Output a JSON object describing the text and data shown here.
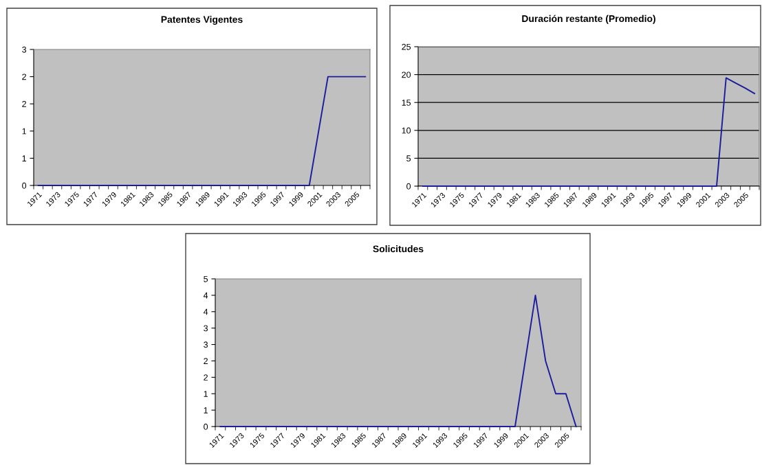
{
  "chart_data": [
    {
      "type": "line",
      "title": "Patentes Vigentes",
      "categories": [
        "1971",
        null,
        "1973",
        null,
        "1975",
        null,
        "1977",
        null,
        "1979",
        null,
        "1981",
        null,
        "1983",
        null,
        "1985",
        null,
        "1987",
        null,
        "1989",
        null,
        "1991",
        null,
        "1993",
        null,
        "1995",
        null,
        "1997",
        null,
        "1999",
        null,
        "2001",
        null,
        "2003",
        null,
        "2005",
        null
      ],
      "series": [
        {
          "color": "#1c1c9c",
          "values": [
            0,
            0,
            0,
            0,
            0,
            0,
            0,
            0,
            0,
            0,
            0,
            0,
            0,
            0,
            0,
            0,
            0,
            0,
            0,
            0,
            0,
            0,
            0,
            0,
            0,
            0,
            0,
            0,
            0,
            0,
            1,
            2,
            2,
            2,
            2,
            2
          ]
        }
      ],
      "ylim": [
        0,
        2.5
      ],
      "yticks": [
        {
          "value": 0,
          "label": "0"
        },
        {
          "value": 0.5,
          "label": "1"
        },
        {
          "value": 1,
          "label": "1"
        },
        {
          "value": 1.5,
          "label": "2"
        },
        {
          "value": 2,
          "label": "2"
        },
        {
          "value": 2.5,
          "label": "3"
        }
      ],
      "grid": false
    },
    {
      "type": "line",
      "title": "Duración restante (Promedio)",
      "categories": [
        "1971",
        null,
        "1973",
        null,
        "1975",
        null,
        "1977",
        null,
        "1979",
        null,
        "1981",
        null,
        "1983",
        null,
        "1985",
        null,
        "1987",
        null,
        "1989",
        null,
        "1991",
        null,
        "1993",
        null,
        "1995",
        null,
        "1997",
        null,
        "1999",
        null,
        "2001",
        null,
        "2003",
        null,
        "2005",
        null
      ],
      "series": [
        {
          "color": "#1c1c9c",
          "values": [
            0,
            0,
            0,
            0,
            0,
            0,
            0,
            0,
            0,
            0,
            0,
            0,
            0,
            0,
            0,
            0,
            0,
            0,
            0,
            0,
            0,
            0,
            0,
            0,
            0,
            0,
            0,
            0,
            0,
            0,
            0,
            0,
            19.4,
            18.5,
            17.6,
            16.6
          ]
        }
      ],
      "ylim": [
        0,
        25
      ],
      "yticks": [
        0,
        5,
        10,
        15,
        20,
        25
      ],
      "grid": "y"
    },
    {
      "type": "line",
      "title": "Solicitudes",
      "categories": [
        "1971",
        null,
        "1973",
        null,
        "1975",
        null,
        "1977",
        null,
        "1979",
        null,
        "1981",
        null,
        "1983",
        null,
        "1985",
        null,
        "1987",
        null,
        "1989",
        null,
        "1991",
        null,
        "1993",
        null,
        "1995",
        null,
        "1997",
        null,
        "1999",
        null,
        "2001",
        null,
        "2003",
        null,
        "2005",
        null
      ],
      "series": [
        {
          "color": "#1c1c9c",
          "values": [
            0,
            0,
            0,
            0,
            0,
            0,
            0,
            0,
            0,
            0,
            0,
            0,
            0,
            0,
            0,
            0,
            0,
            0,
            0,
            0,
            0,
            0,
            0,
            0,
            0,
            0,
            0,
            0,
            0,
            0,
            2,
            4,
            2,
            1,
            1,
            0
          ]
        }
      ],
      "ylim": [
        0,
        4.5
      ],
      "yticks": [
        {
          "value": 0,
          "label": "0"
        },
        {
          "value": 0.5,
          "label": "1"
        },
        {
          "value": 1,
          "label": "1"
        },
        {
          "value": 1.5,
          "label": "2"
        },
        {
          "value": 2,
          "label": "2"
        },
        {
          "value": 2.5,
          "label": "3"
        },
        {
          "value": 3,
          "label": "3"
        },
        {
          "value": 3.5,
          "label": "4"
        },
        {
          "value": 4,
          "label": "4"
        },
        {
          "value": 4.5,
          "label": "5"
        }
      ],
      "grid": false
    }
  ]
}
